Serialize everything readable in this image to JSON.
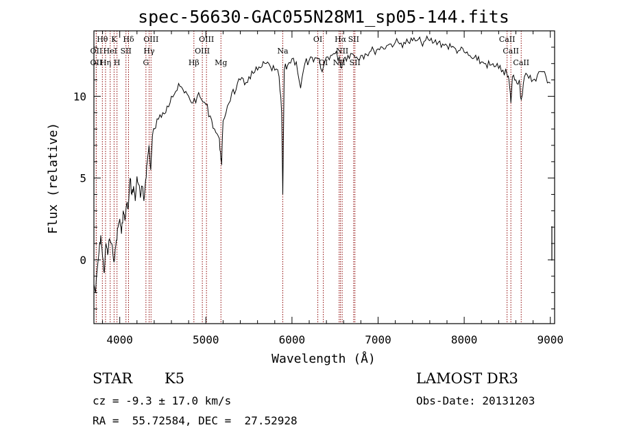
{
  "chart_data": {
    "type": "line",
    "title": "spec-56630-GAC055N28M1_sp05-144.fits",
    "xlabel": "Wavelength (Å)",
    "ylabel": "Flux (relative)",
    "xlim": [
      3700,
      9050
    ],
    "ylim": [
      -3.9,
      14.0
    ],
    "xticks": [
      4000,
      5000,
      6000,
      7000,
      8000,
      9000
    ],
    "yticks": [
      0,
      5,
      10
    ],
    "x": [
      3700,
      3720,
      3740,
      3760,
      3780,
      3800,
      3820,
      3840,
      3860,
      3880,
      3900,
      3920,
      3940,
      3960,
      3980,
      4000,
      4020,
      4040,
      4060,
      4080,
      4100,
      4120,
      4140,
      4160,
      4180,
      4200,
      4220,
      4240,
      4260,
      4280,
      4300,
      4320,
      4340,
      4360,
      4380,
      4400,
      4450,
      4500,
      4550,
      4600,
      4650,
      4700,
      4750,
      4800,
      4850,
      4900,
      4950,
      5000,
      5050,
      5100,
      5150,
      5170,
      5183,
      5200,
      5250,
      5300,
      5350,
      5400,
      5450,
      5500,
      5550,
      5600,
      5650,
      5700,
      5750,
      5800,
      5850,
      5880,
      5893,
      5910,
      5950,
      6000,
      6050,
      6100,
      6150,
      6200,
      6250,
      6300,
      6350,
      6400,
      6450,
      6500,
      6550,
      6563,
      6600,
      6650,
      6700,
      6750,
      6800,
      6850,
      6900,
      6950,
      7000,
      7050,
      7100,
      7150,
      7200,
      7250,
      7300,
      7350,
      7400,
      7450,
      7500,
      7550,
      7600,
      7650,
      7700,
      7750,
      7800,
      7850,
      7900,
      7950,
      8000,
      8050,
      8100,
      8150,
      8200,
      8250,
      8300,
      8350,
      8400,
      8450,
      8498,
      8520,
      8542,
      8560,
      8600,
      8640,
      8662,
      8700,
      8750,
      8800,
      8850,
      8900,
      8950,
      9000
    ],
    "y": [
      -1.5,
      -2.0,
      -0.5,
      0.5,
      1.5,
      0.2,
      -0.8,
      1.0,
      0.3,
      1.3,
      1.0,
      0.4,
      0.0,
      1.2,
      2.0,
      2.5,
      1.6,
      3.0,
      2.4,
      3.4,
      3.2,
      5.0,
      4.0,
      4.5,
      3.6,
      5.1,
      4.6,
      3.8,
      4.5,
      3.6,
      4.9,
      6.0,
      7.0,
      5.5,
      7.6,
      8.0,
      8.6,
      9.0,
      9.4,
      10.0,
      10.3,
      10.6,
      10.2,
      10.0,
      9.6,
      10.0,
      9.8,
      9.5,
      8.8,
      8.0,
      7.5,
      6.6,
      5.8,
      8.5,
      9.4,
      10.2,
      10.4,
      11.0,
      10.7,
      11.2,
      11.4,
      11.6,
      11.8,
      12.0,
      11.8,
      11.6,
      11.2,
      9.0,
      4.0,
      11.6,
      11.9,
      12.3,
      12.1,
      10.5,
      12.0,
      12.2,
      12.1,
      12.3,
      11.5,
      12.4,
      12.5,
      12.6,
      12.4,
      11.8,
      12.3,
      12.5,
      12.6,
      12.4,
      12.5,
      12.6,
      12.7,
      12.8,
      12.9,
      13.0,
      13.1,
      13.2,
      13.3,
      13.2,
      13.3,
      13.3,
      13.4,
      13.4,
      13.3,
      13.4,
      13.4,
      13.3,
      13.3,
      13.2,
      13.1,
      13.0,
      12.9,
      12.8,
      12.7,
      12.5,
      12.3,
      12.2,
      12.1,
      12.0,
      11.9,
      11.8,
      11.7,
      11.6,
      11.3,
      11.0,
      9.6,
      11.2,
      11.0,
      11.0,
      9.8,
      11.2,
      11.1,
      11.0,
      11.3,
      11.5,
      11.2,
      10.8
    ],
    "lines": [
      {
        "label": "Hθ",
        "wave": 3798,
        "row": 1
      },
      {
        "label": "OII",
        "wave": 3727,
        "row": 2
      },
      {
        "label": "OII",
        "wave": 3727,
        "row": 3
      },
      {
        "label": "Hη",
        "wave": 3835,
        "row": 3
      },
      {
        "label": "K",
        "wave": 3934,
        "row": 1
      },
      {
        "label": "HeI",
        "wave": 3889,
        "row": 2
      },
      {
        "label": "H",
        "wave": 3968,
        "row": 3
      },
      {
        "label": "Hδ",
        "wave": 4102,
        "row": 1
      },
      {
        "label": "SII",
        "wave": 4072,
        "row": 2
      },
      {
        "label": "OIII",
        "wave": 4363,
        "row": 1
      },
      {
        "label": "Hγ",
        "wave": 4341,
        "row": 2
      },
      {
        "label": "G",
        "wave": 4304,
        "row": 3
      },
      {
        "label": "OIII",
        "wave": 5007,
        "row": 1
      },
      {
        "label": "OIII",
        "wave": 4959,
        "row": 2
      },
      {
        "label": "Hβ",
        "wave": 4861,
        "row": 3
      },
      {
        "label": "Mg",
        "wave": 5175,
        "row": 3
      },
      {
        "label": "Na",
        "wave": 5893,
        "row": 2
      },
      {
        "label": "OI",
        "wave": 6300,
        "row": 1
      },
      {
        "label": "OI",
        "wave": 6364,
        "row": 3
      },
      {
        "label": "Hα",
        "wave": 6563,
        "row": 1
      },
      {
        "label": "SII",
        "wave": 6716,
        "row": 1
      },
      {
        "label": "NII",
        "wave": 6583,
        "row": 2
      },
      {
        "label": "NII",
        "wave": 6548,
        "row": 3
      },
      {
        "label": "SII",
        "wave": 6731,
        "row": 3
      },
      {
        "label": "CaII",
        "wave": 8498,
        "row": 1
      },
      {
        "label": "CaII",
        "wave": 8542,
        "row": 2
      },
      {
        "label": "CaII",
        "wave": 8662,
        "row": 3
      }
    ],
    "line_color": "#8b0000"
  },
  "info": {
    "object_class": "STAR",
    "subclass": "K5",
    "survey": "LAMOST DR3",
    "redshift": "cz = -9.3 ± 17.0 km/s",
    "obs_date": "Obs-Date: 20131203",
    "coords": "RA =  55.72584, DEC =  27.52928"
  }
}
